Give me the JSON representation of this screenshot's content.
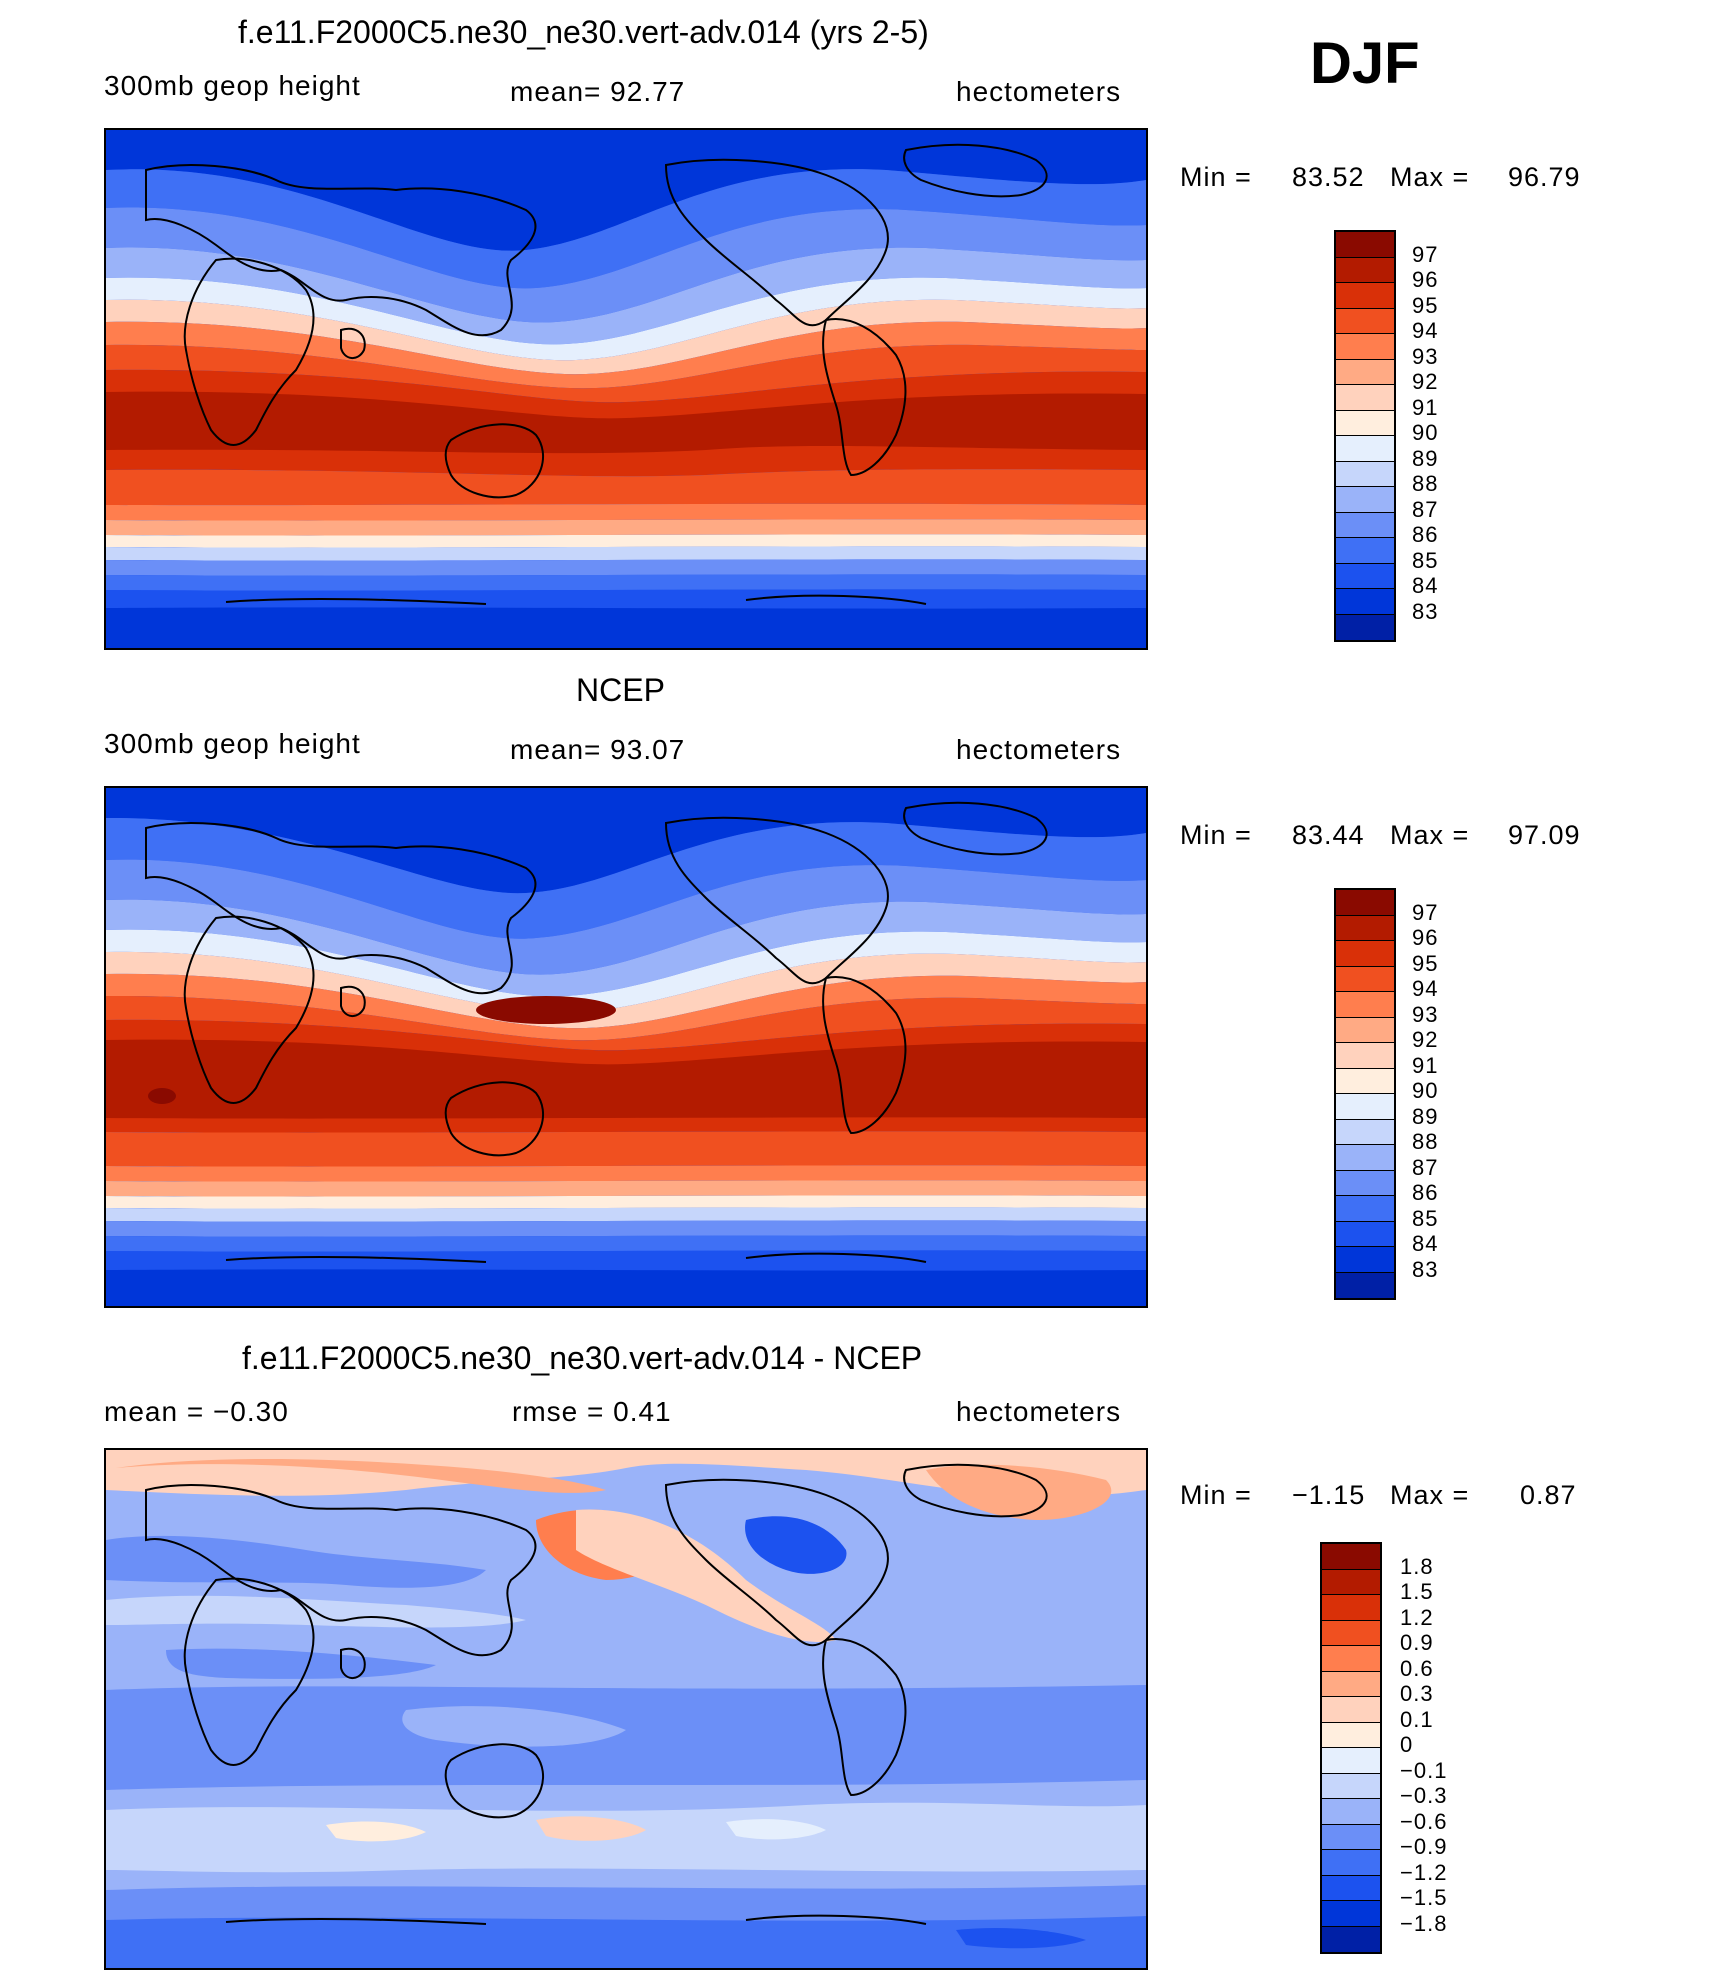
{
  "season": "DJF",
  "colors": {
    "heights": [
      "#000b80",
      "#0020a6",
      "#0036d9",
      "#1c52ef",
      "#3f70f5",
      "#6b8ff7",
      "#9ab3f9",
      "#c6d6fb",
      "#e5effd",
      "#ffeede",
      "#ffd2bd",
      "#ffaa84",
      "#ff7e4e",
      "#f05020",
      "#d93008",
      "#b31b00",
      "#8a0a00"
    ],
    "diff": [
      "#000b80",
      "#0020a6",
      "#0036d9",
      "#1c52ef",
      "#3f70f5",
      "#6b8ff7",
      "#9ab3f9",
      "#c6d6fb",
      "#e5effd",
      "#ffeede",
      "#ffd2bd",
      "#ffaa84",
      "#ff7e4e",
      "#f05020",
      "#d93008",
      "#b31b00",
      "#8a0a00"
    ]
  },
  "panels": [
    {
      "title": "f.e11.F2000C5.ne30_ne30.vert-adv.014 (yrs 2-5)",
      "left_label": "300mb  geop  height",
      "center_label": "mean=   92.77",
      "right_label": "hectometers",
      "min_label": "Min  =",
      "min_value": "83.52",
      "max_label": "Max  =",
      "max_value": "96.79",
      "colorbar_levels": [
        "97",
        "96",
        "95",
        "94",
        "93",
        "92",
        "91",
        "90",
        "89",
        "88",
        "87",
        "86",
        "85",
        "84",
        "83"
      ]
    },
    {
      "title": "NCEP",
      "left_label": "300mb  geop  height",
      "center_label": "mean=   93.07",
      "right_label": "hectometers",
      "min_label": "Min  =",
      "min_value": "83.44",
      "max_label": "Max  =",
      "max_value": "97.09",
      "colorbar_levels": [
        "97",
        "96",
        "95",
        "94",
        "93",
        "92",
        "91",
        "90",
        "89",
        "88",
        "87",
        "86",
        "85",
        "84",
        "83"
      ]
    },
    {
      "title": "f.e11.F2000C5.ne30_ne30.vert-adv.014 - NCEP",
      "left_label": "mean  =    −0.30",
      "center_label": "rmse  =     0.41",
      "right_label": "hectometers",
      "min_label": "Min  =",
      "min_value": "−1.15",
      "max_label": "Max  =",
      "max_value": "0.87",
      "colorbar_levels": [
        "1.8",
        "1.5",
        "1.2",
        "0.9",
        "0.6",
        "0.3",
        "0.1",
        "0",
        "−0.1",
        "−0.3",
        "−0.6",
        "−0.9",
        "−1.2",
        "−1.5",
        "−1.8"
      ]
    }
  ]
}
